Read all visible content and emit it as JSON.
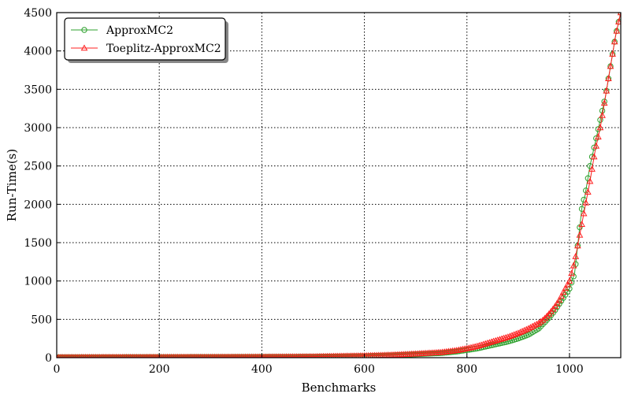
{
  "chart_data": {
    "type": "line",
    "xlabel": "Benchmarks",
    "ylabel": "Run-Time(s)",
    "xlim": [
      0,
      1100
    ],
    "ylim": [
      0,
      4500
    ],
    "x_ticks": [
      "0",
      "200",
      "400",
      "600",
      "800",
      "1000"
    ],
    "y_ticks": [
      "0",
      "500",
      "1000",
      "1500",
      "2000",
      "2500",
      "3000",
      "3500",
      "4000",
      "4500"
    ],
    "grid": true,
    "legend_position": "top-left",
    "series": [
      {
        "name": "ApproxMC2",
        "color": "#2ca02c",
        "marker": "circle",
        "points": [
          [
            0,
            5
          ],
          [
            100,
            6
          ],
          [
            200,
            7
          ],
          [
            300,
            8
          ],
          [
            400,
            10
          ],
          [
            500,
            12
          ],
          [
            600,
            20
          ],
          [
            650,
            30
          ],
          [
            700,
            45
          ],
          [
            750,
            60
          ],
          [
            780,
            80
          ],
          [
            800,
            100
          ],
          [
            820,
            120
          ],
          [
            840,
            150
          ],
          [
            860,
            180
          ],
          [
            880,
            210
          ],
          [
            900,
            250
          ],
          [
            920,
            300
          ],
          [
            940,
            380
          ],
          [
            950,
            450
          ],
          [
            960,
            520
          ],
          [
            970,
            600
          ],
          [
            980,
            700
          ],
          [
            990,
            800
          ],
          [
            1000,
            900
          ],
          [
            1010,
            1100
          ],
          [
            1015,
            1400
          ],
          [
            1020,
            1700
          ],
          [
            1025,
            2000
          ],
          [
            1030,
            2100
          ],
          [
            1040,
            2500
          ],
          [
            1050,
            2800
          ],
          [
            1060,
            3100
          ],
          [
            1070,
            3400
          ],
          [
            1080,
            3800
          ],
          [
            1090,
            4200
          ],
          [
            1100,
            4500
          ]
        ]
      },
      {
        "name": "Toeplitz-ApproxMC2",
        "color": "#ff2020",
        "marker": "triangle",
        "points": [
          [
            0,
            5
          ],
          [
            100,
            6
          ],
          [
            200,
            7
          ],
          [
            300,
            8
          ],
          [
            400,
            10
          ],
          [
            500,
            14
          ],
          [
            600,
            25
          ],
          [
            650,
            35
          ],
          [
            700,
            50
          ],
          [
            750,
            70
          ],
          [
            780,
            95
          ],
          [
            800,
            120
          ],
          [
            820,
            150
          ],
          [
            840,
            190
          ],
          [
            860,
            230
          ],
          [
            880,
            270
          ],
          [
            900,
            320
          ],
          [
            920,
            380
          ],
          [
            940,
            450
          ],
          [
            950,
            500
          ],
          [
            960,
            570
          ],
          [
            970,
            650
          ],
          [
            980,
            750
          ],
          [
            990,
            880
          ],
          [
            1000,
            1000
          ],
          [
            1010,
            1250
          ],
          [
            1020,
            1600
          ],
          [
            1030,
            1950
          ],
          [
            1040,
            2300
          ],
          [
            1050,
            2700
          ],
          [
            1060,
            3000
          ],
          [
            1070,
            3400
          ],
          [
            1080,
            3800
          ],
          [
            1090,
            4200
          ],
          [
            1100,
            4500
          ]
        ]
      }
    ]
  }
}
